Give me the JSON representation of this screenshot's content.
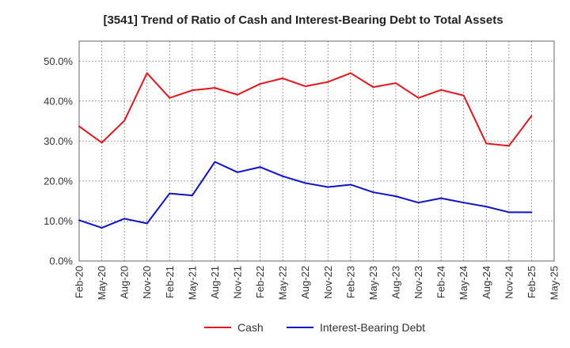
{
  "chart_data": {
    "type": "line",
    "title": "[3541]  Trend of Ratio of Cash and Interest-Bearing Debt to Total Assets",
    "xlabel": "",
    "ylabel": "",
    "ylim": [
      0,
      55
    ],
    "y_ticks": [
      {
        "value": 0,
        "label": "0.0%"
      },
      {
        "value": 10,
        "label": "10.0%"
      },
      {
        "value": 20,
        "label": "20.0%"
      },
      {
        "value": 30,
        "label": "30.0%"
      },
      {
        "value": 40,
        "label": "40.0%"
      },
      {
        "value": 50,
        "label": "50.0%"
      }
    ],
    "x_tick_labels": [
      "Feb-20",
      "May-20",
      "Aug-20",
      "Nov-20",
      "Feb-21",
      "May-21",
      "Aug-21",
      "Nov-21",
      "Feb-22",
      "May-22",
      "Aug-22",
      "Nov-22",
      "Feb-23",
      "May-23",
      "Aug-23",
      "Nov-23",
      "Feb-24",
      "May-24",
      "Aug-24",
      "Nov-24",
      "Feb-25",
      "May-25"
    ],
    "categories": [
      "Feb-20",
      "May-20",
      "Aug-20",
      "Nov-20",
      "Feb-21",
      "May-21",
      "Aug-21",
      "Nov-21",
      "Feb-22",
      "May-22",
      "Aug-22",
      "Nov-22",
      "Feb-23",
      "May-23",
      "Aug-23",
      "Nov-23",
      "Feb-24",
      "May-24",
      "Aug-24",
      "Nov-24",
      "Feb-25"
    ],
    "series": [
      {
        "name": "Cash",
        "color": "#e8141c",
        "values": [
          33.7,
          29.6,
          35.1,
          47.0,
          40.8,
          42.7,
          43.3,
          41.6,
          44.3,
          45.7,
          43.7,
          44.8,
          47.0,
          43.5,
          44.5,
          40.8,
          42.8,
          41.4,
          29.4,
          28.8,
          36.3
        ]
      },
      {
        "name": "Interest-Bearing Debt",
        "color": "#1010d0",
        "values": [
          10.2,
          8.3,
          10.6,
          9.4,
          16.9,
          16.4,
          24.8,
          22.2,
          23.5,
          21.2,
          19.5,
          18.5,
          19.1,
          17.2,
          16.2,
          14.6,
          15.7,
          14.6,
          13.6,
          12.2,
          12.2
        ]
      }
    ],
    "grid": true,
    "legend_position": "bottom-center"
  }
}
